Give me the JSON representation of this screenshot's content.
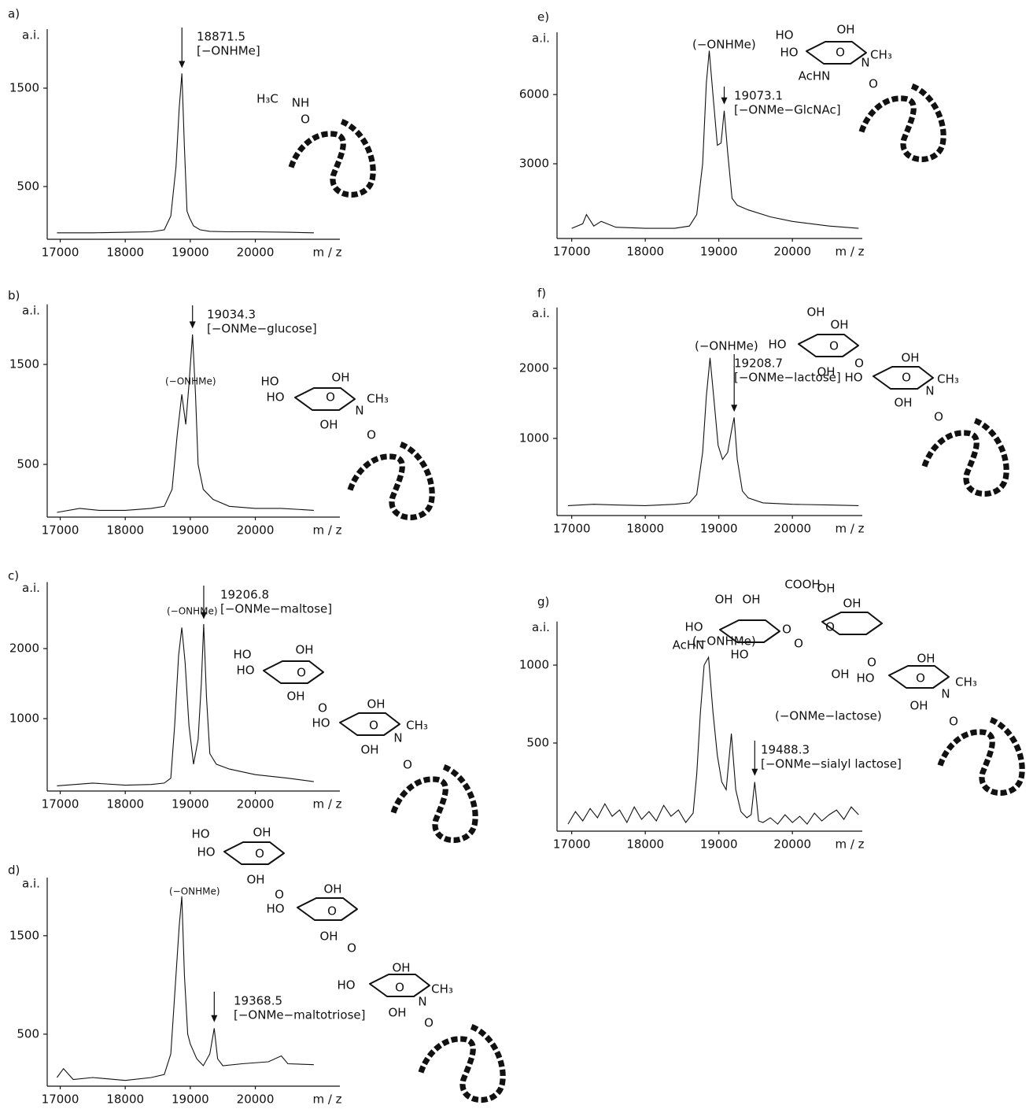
{
  "chart_data": [
    {
      "type": "line",
      "panel": "a)",
      "y_label": "a.i.",
      "x_label": "m / z",
      "xlim": [
        16800,
        21300
      ],
      "ylim": [
        0,
        2100
      ],
      "xticks": [
        17000,
        18000,
        19000,
        20000
      ],
      "yticks": [
        500,
        1500
      ],
      "color": "#111111",
      "x": [
        16950,
        17500,
        18000,
        18400,
        18600,
        18700,
        18780,
        18830,
        18871,
        18910,
        18950,
        18990,
        19050,
        19150,
        19300,
        19600,
        20000,
        20500,
        20900
      ],
      "values": [
        30,
        30,
        35,
        40,
        60,
        200,
        700,
        1300,
        1650,
        900,
        250,
        180,
        100,
        60,
        45,
        40,
        40,
        35,
        30
      ],
      "peak": {
        "mz": 18871.5,
        "label": "[−ONHMe]"
      },
      "annotations": [],
      "structure": [
        "H₃C",
        "NH",
        "O"
      ]
    },
    {
      "type": "line",
      "panel": "b)",
      "y_label": "a.i.",
      "x_label": "m / z",
      "xlim": [
        16800,
        21300
      ],
      "ylim": [
        0,
        2100
      ],
      "xticks": [
        17000,
        18000,
        19000,
        20000
      ],
      "yticks": [
        500,
        1500
      ],
      "color": "#111111",
      "x": [
        16950,
        17300,
        17600,
        18000,
        18400,
        18600,
        18720,
        18800,
        18870,
        18930,
        18980,
        19034,
        19080,
        19120,
        19200,
        19350,
        19600,
        20000,
        20400,
        20900
      ],
      "values": [
        20,
        60,
        40,
        40,
        60,
        80,
        250,
        800,
        1200,
        900,
        1300,
        1800,
        1200,
        500,
        250,
        150,
        80,
        60,
        60,
        40
      ],
      "peak": {
        "mz": 19034.3,
        "label": "[−ONMe−glucose]"
      },
      "annotations": [
        "(−ONHMe)"
      ],
      "structure": [
        "HO",
        "OH",
        "HO",
        "O",
        "OH",
        "N",
        "CH₃",
        "O"
      ]
    },
    {
      "type": "line",
      "panel": "c)",
      "y_label": "a.i.",
      "x_label": "m / z",
      "xlim": [
        16800,
        21300
      ],
      "ylim": [
        0,
        2950
      ],
      "xticks": [
        17000,
        18000,
        19000,
        20000
      ],
      "yticks": [
        1000,
        2000
      ],
      "color": "#111111",
      "x": [
        16950,
        17500,
        18000,
        18400,
        18600,
        18700,
        18760,
        18820,
        18870,
        18920,
        18980,
        19050,
        19120,
        19170,
        19206,
        19250,
        19300,
        19400,
        19600,
        20000,
        20500,
        20900
      ],
      "values": [
        40,
        80,
        50,
        60,
        80,
        150,
        900,
        1900,
        2300,
        1800,
        900,
        350,
        700,
        1500,
        2350,
        1300,
        500,
        350,
        280,
        200,
        150,
        100
      ],
      "peak": {
        "mz": 19206.8,
        "label": "[−ONMe−maltose]"
      },
      "annotations": [
        "(−ONHMe)"
      ],
      "structure": [
        "HO",
        "OH",
        "HO",
        "O",
        "OH",
        "O",
        "OH",
        "HO",
        "O",
        "OH",
        "N",
        "CH₃",
        "O"
      ]
    },
    {
      "type": "line",
      "panel": "d)",
      "y_label": "a.i.",
      "x_label": "m / z",
      "xlim": [
        16800,
        21300
      ],
      "ylim": [
        0,
        2090
      ],
      "xticks": [
        17000,
        18000,
        19000,
        20000
      ],
      "yticks": [
        500,
        1500
      ],
      "color": "#111111",
      "x": [
        16950,
        17050,
        17200,
        17500,
        18000,
        18400,
        18600,
        18700,
        18780,
        18830,
        18870,
        18910,
        18960,
        19000,
        19100,
        19200,
        19300,
        19368,
        19420,
        19500,
        19800,
        20200,
        20400,
        20500,
        20900
      ],
      "values": [
        60,
        150,
        40,
        60,
        30,
        60,
        90,
        300,
        1100,
        1600,
        1900,
        1100,
        500,
        400,
        250,
        180,
        300,
        560,
        250,
        180,
        200,
        220,
        280,
        200,
        190
      ],
      "peak": {
        "mz": 19368.5,
        "label": "[−ONMe−maltotriose]"
      },
      "annotations": [
        "(−ONHMe)"
      ],
      "structure": [
        "HO",
        "OH",
        "HO",
        "O",
        "OH",
        "O",
        "OH",
        "HO",
        "O",
        "OH",
        "O",
        "OH",
        "HO",
        "O",
        "OH",
        "N",
        "CH₃",
        "O"
      ]
    },
    {
      "type": "line",
      "panel": "e)",
      "y_label": "a.i.",
      "x_label": "m / z",
      "xlim": [
        16800,
        20950
      ],
      "ylim": [
        0,
        8700
      ],
      "xticks": [
        17000,
        18000,
        19000,
        20000
      ],
      "yticks": [
        3000,
        6000
      ],
      "color": "#111111",
      "x": [
        17000,
        17150,
        17200,
        17300,
        17400,
        17600,
        18000,
        18400,
        18600,
        18700,
        18780,
        18830,
        18870,
        18920,
        18980,
        19030,
        19073,
        19120,
        19180,
        19250,
        19400,
        19700,
        20000,
        20500,
        20900
      ],
      "values": [
        200,
        400,
        800,
        300,
        500,
        250,
        200,
        200,
        300,
        800,
        3000,
        6500,
        7900,
        6000,
        3800,
        3900,
        5300,
        3500,
        1500,
        1200,
        1000,
        700,
        500,
        300,
        200
      ],
      "peak": {
        "mz": 19073.1,
        "label": "[−ONMe−GlcNAc]"
      },
      "annotations": [
        "(−ONHMe)"
      ],
      "structure": [
        "HO",
        "OH",
        "HO",
        "O",
        "N",
        "CH₃",
        "AcHN",
        "O"
      ]
    },
    {
      "type": "line",
      "panel": "f)",
      "y_label": "a.i.",
      "x_label": "m / z",
      "xlim": [
        16800,
        20950
      ],
      "ylim": [
        0,
        2870
      ],
      "xticks": [
        17000,
        18000,
        19000,
        20000
      ],
      "yticks": [
        1000,
        2000
      ],
      "color": "#111111",
      "x": [
        16950,
        17300,
        17600,
        18000,
        18400,
        18600,
        18700,
        18780,
        18830,
        18880,
        18930,
        18990,
        19050,
        19120,
        19170,
        19208,
        19250,
        19320,
        19400,
        19600,
        20000,
        20500,
        20900
      ],
      "values": [
        40,
        60,
        50,
        40,
        60,
        80,
        200,
        800,
        1600,
        2150,
        1600,
        900,
        700,
        800,
        1100,
        1300,
        700,
        250,
        150,
        80,
        60,
        50,
        40
      ],
      "peak": {
        "mz": 19208.7,
        "label": "[−ONMe−lactose]"
      },
      "annotations": [
        "(−ONHMe)"
      ],
      "structure": [
        "OH",
        "OH",
        "HO",
        "O",
        "OH",
        "O",
        "OH",
        "HO",
        "O",
        "OH",
        "N",
        "CH₃",
        "O"
      ]
    },
    {
      "type": "line",
      "panel": "g)",
      "y_label": "a.i.",
      "x_label": "m / z",
      "xlim": [
        16800,
        20950
      ],
      "ylim": [
        0,
        1280
      ],
      "xticks": [
        17000,
        18000,
        19000,
        20000
      ],
      "yticks": [
        500,
        1000
      ],
      "color": "#111111",
      "x": [
        16950,
        17050,
        17150,
        17250,
        17350,
        17450,
        17550,
        17650,
        17750,
        17850,
        17950,
        18050,
        18150,
        18250,
        18350,
        18450,
        18550,
        18650,
        18700,
        18750,
        18800,
        18860,
        18920,
        18980,
        19040,
        19100,
        19170,
        19230,
        19300,
        19380,
        19440,
        19488,
        19540,
        19600,
        19700,
        19800,
        19900,
        20000,
        20100,
        20200,
        20300,
        20400,
        20500,
        20600,
        20700,
        20800,
        20900
      ],
      "values": [
        -20,
        60,
        0,
        80,
        20,
        110,
        30,
        70,
        -10,
        90,
        10,
        60,
        0,
        100,
        30,
        70,
        -10,
        50,
        300,
        700,
        1000,
        1050,
        700,
        420,
        250,
        200,
        560,
        200,
        60,
        20,
        40,
        250,
        0,
        -10,
        20,
        -20,
        40,
        -10,
        30,
        -20,
        50,
        0,
        40,
        70,
        10,
        90,
        40
      ],
      "peak": {
        "mz": 19488.3,
        "label": "[−ONMe−sialyl lactose]"
      },
      "annotations": [
        "(−ONHMe)",
        "(−ONMe−lactose)"
      ],
      "structure": [
        "OH",
        "OH",
        "COOH",
        "HO",
        "AcHN",
        "O",
        "HO",
        "O",
        "OH",
        "OH",
        "O",
        "OH",
        "O",
        "OH",
        "HO",
        "O",
        "OH",
        "N",
        "CH₃",
        "O"
      ]
    }
  ]
}
